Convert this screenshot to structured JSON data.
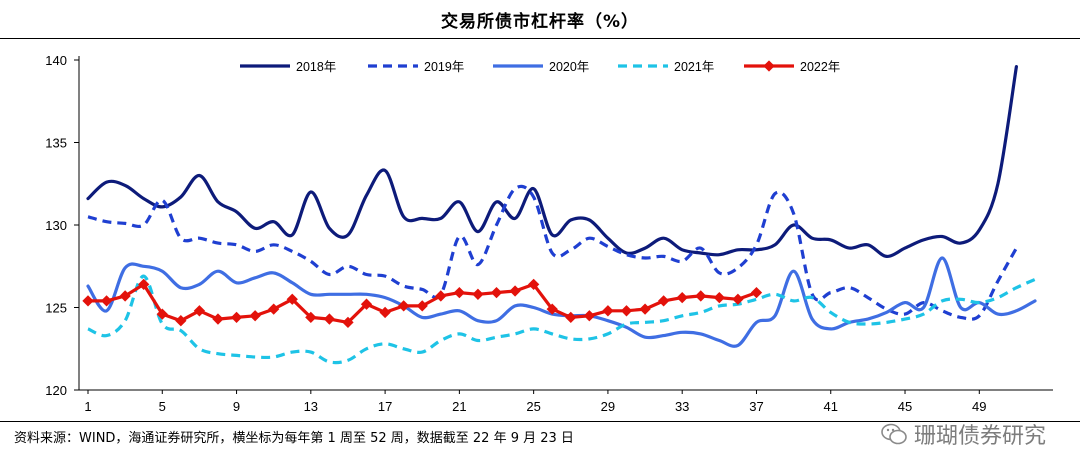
{
  "chart_data": {
    "type": "line",
    "title": "交易所债市杠杆率（%）",
    "xlabel": "",
    "ylabel": "",
    "xlim": [
      1,
      52
    ],
    "ylim": [
      120,
      140
    ],
    "y_ticks": [
      120,
      125,
      130,
      135,
      140
    ],
    "x_ticks": [
      1,
      5,
      9,
      13,
      17,
      21,
      25,
      29,
      33,
      37,
      41,
      45,
      49
    ],
    "grid": false,
    "legend_position": "top",
    "series": [
      {
        "name": "2018年",
        "style": "solid",
        "color": "#0d1b7a",
        "x": [
          1,
          2,
          3,
          4,
          5,
          6,
          7,
          8,
          9,
          10,
          11,
          12,
          13,
          14,
          15,
          16,
          17,
          18,
          19,
          20,
          21,
          22,
          23,
          24,
          25,
          26,
          27,
          28,
          29,
          30,
          31,
          32,
          33,
          34,
          35,
          36,
          37,
          38,
          39,
          40,
          41,
          42,
          43,
          44,
          45,
          46,
          47,
          48,
          49,
          50,
          51,
          52
        ],
        "values": [
          131.6,
          132.6,
          132.4,
          131.6,
          131.1,
          131.7,
          133.0,
          131.4,
          130.8,
          129.8,
          130.2,
          129.4,
          132.0,
          129.8,
          129.4,
          131.8,
          133.3,
          130.5,
          130.4,
          130.4,
          131.4,
          129.6,
          131.4,
          130.4,
          132.2,
          129.4,
          130.3,
          130.3,
          129.2,
          128.3,
          128.6,
          129.2,
          128.5,
          128.3,
          128.2,
          128.5,
          128.5,
          128.8,
          130.0,
          129.2,
          129.1,
          128.6,
          128.8,
          128.1,
          128.6,
          129.1,
          129.3,
          128.9,
          129.7,
          132.5,
          139.6,
          null
        ]
      },
      {
        "name": "2019年",
        "style": "dash",
        "color": "#1f3fd1",
        "x": [
          1,
          2,
          3,
          4,
          5,
          6,
          7,
          8,
          9,
          10,
          11,
          12,
          13,
          14,
          15,
          16,
          17,
          18,
          19,
          20,
          21,
          22,
          23,
          24,
          25,
          26,
          27,
          28,
          29,
          30,
          31,
          32,
          33,
          34,
          35,
          36,
          37,
          38,
          39,
          40,
          41,
          42,
          43,
          44,
          45,
          46,
          47,
          48,
          49,
          50,
          51,
          52
        ],
        "values": [
          130.5,
          130.2,
          130.1,
          130.0,
          131.5,
          129.2,
          129.2,
          128.9,
          128.8,
          128.4,
          128.8,
          128.4,
          127.8,
          127.0,
          127.5,
          127.0,
          126.9,
          126.3,
          126.1,
          125.8,
          129.3,
          127.6,
          130.0,
          132.2,
          131.7,
          128.3,
          128.5,
          129.2,
          128.7,
          128.2,
          128.0,
          128.1,
          127.8,
          128.6,
          127.1,
          127.4,
          128.8,
          131.9,
          130.7,
          125.8,
          125.9,
          126.2,
          125.6,
          124.9,
          124.6,
          125.3,
          124.8,
          124.4,
          124.5,
          126.6,
          128.6,
          null
        ]
      },
      {
        "name": "2020年",
        "style": "solid",
        "color": "#3f6ee3",
        "x": [
          1,
          2,
          3,
          4,
          5,
          6,
          7,
          8,
          9,
          10,
          11,
          12,
          13,
          14,
          15,
          16,
          17,
          18,
          19,
          20,
          21,
          22,
          23,
          24,
          25,
          26,
          27,
          28,
          29,
          30,
          31,
          32,
          33,
          34,
          35,
          36,
          37,
          38,
          39,
          40,
          41,
          42,
          43,
          44,
          45,
          46,
          47,
          48,
          49,
          50,
          51,
          52
        ],
        "values": [
          126.3,
          124.8,
          127.4,
          127.5,
          127.2,
          126.2,
          126.4,
          127.2,
          126.5,
          126.8,
          127.1,
          126.5,
          125.8,
          125.8,
          125.8,
          125.8,
          125.6,
          125.1,
          124.4,
          124.6,
          124.8,
          124.2,
          124.2,
          125.1,
          125.0,
          124.6,
          124.5,
          124.5,
          124.2,
          123.8,
          123.2,
          123.3,
          123.5,
          123.4,
          123.0,
          122.7,
          124.1,
          124.5,
          127.2,
          124.3,
          123.7,
          124.1,
          124.3,
          124.7,
          125.3,
          125.0,
          128.0,
          125.0,
          125.3,
          124.6,
          124.8,
          125.4
        ]
      },
      {
        "name": "2021年",
        "style": "dash",
        "color": "#1ec3e6",
        "x": [
          1,
          2,
          3,
          4,
          5,
          6,
          7,
          8,
          9,
          10,
          11,
          12,
          13,
          14,
          15,
          16,
          17,
          18,
          19,
          20,
          21,
          22,
          23,
          24,
          25,
          26,
          27,
          28,
          29,
          30,
          31,
          32,
          33,
          34,
          35,
          36,
          37,
          38,
          39,
          40,
          41,
          42,
          43,
          44,
          45,
          46,
          47,
          48,
          49,
          50,
          51,
          52
        ],
        "values": [
          123.7,
          123.3,
          124.2,
          126.9,
          124.0,
          123.6,
          122.5,
          122.2,
          122.1,
          122.0,
          122.0,
          122.3,
          122.3,
          121.7,
          121.8,
          122.5,
          122.8,
          122.5,
          122.3,
          123.0,
          123.4,
          123.0,
          123.2,
          123.4,
          123.7,
          123.4,
          123.1,
          123.1,
          123.4,
          124.0,
          124.1,
          124.2,
          124.5,
          124.7,
          125.1,
          125.2,
          125.5,
          125.8,
          125.4,
          125.6,
          124.7,
          124.1,
          124.0,
          124.1,
          124.3,
          124.6,
          125.4,
          125.5,
          125.3,
          125.6,
          126.2,
          126.7
        ]
      },
      {
        "name": "2022年",
        "style": "marker",
        "color": "#e3120b",
        "x": [
          1,
          2,
          3,
          4,
          5,
          6,
          7,
          8,
          9,
          10,
          11,
          12,
          13,
          14,
          15,
          16,
          17,
          18,
          19,
          20,
          21,
          22,
          23,
          24,
          25,
          26,
          27,
          28,
          29,
          30,
          31,
          32,
          33,
          34,
          35,
          36,
          37,
          38
        ],
        "values": [
          125.4,
          125.4,
          125.7,
          126.4,
          124.6,
          124.2,
          124.8,
          124.3,
          124.4,
          124.5,
          124.9,
          125.5,
          124.4,
          124.3,
          124.1,
          125.2,
          124.7,
          125.1,
          125.1,
          125.7,
          125.9,
          125.8,
          125.9,
          126.0,
          126.4,
          124.9,
          124.4,
          124.5,
          124.8,
          124.8,
          124.9,
          125.4,
          125.6,
          125.7,
          125.6,
          125.5,
          125.9,
          null
        ]
      }
    ]
  },
  "footer": {
    "source": "资料来源：WIND，海通证券研究所，横坐标为每年第 1 周至 52 周，数据截至 22 年 9 月 23 日"
  },
  "watermark": {
    "text": "珊瑚债券研究",
    "icon": "wechat-icon"
  }
}
